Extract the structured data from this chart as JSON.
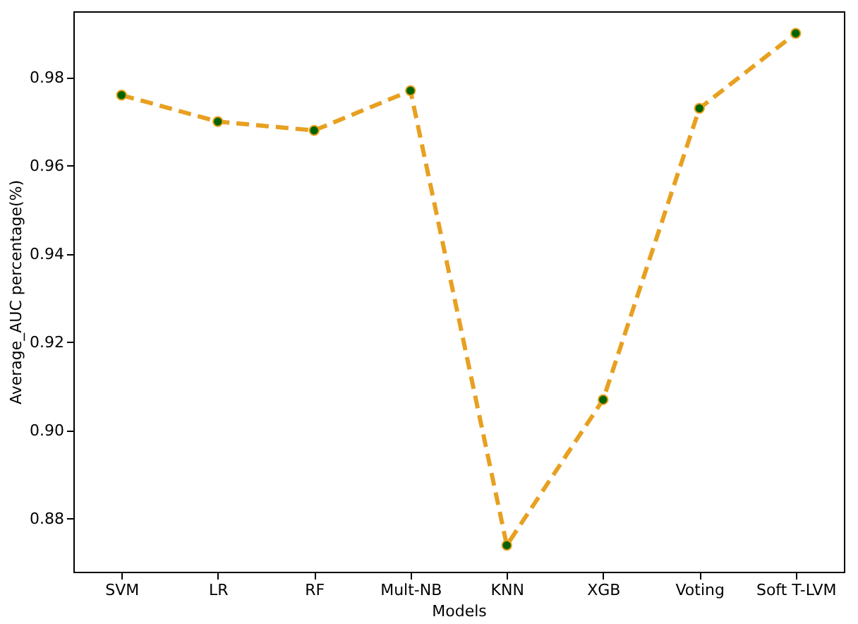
{
  "chart_data": {
    "type": "line",
    "xlabel": "Models",
    "ylabel": "Average_AUC percentage(%)",
    "categories": [
      "SVM",
      "LR",
      "RF",
      "Mult-NB",
      "KNN",
      "XGB",
      "Voting",
      "Soft T-LVM"
    ],
    "series": [
      {
        "color": "#e8a020",
        "colors": [
          "#006400",
          "#006400",
          "#006400",
          "#006400",
          "#006400",
          "#006400",
          "#006400",
          "#006400"
        ],
        "values": [
          0.976,
          0.97,
          0.968,
          0.977,
          0.874,
          0.907,
          0.973,
          0.99
        ]
      }
    ],
    "ylim": [
      0.868,
      0.995
    ],
    "yticks": [
      0.88,
      {
        "value": 0.9,
        "label": "0.90"
      },
      0.92,
      0.94,
      0.96,
      0.98
    ],
    "grid": false,
    "marker": "circle",
    "line_style": "dashed"
  }
}
